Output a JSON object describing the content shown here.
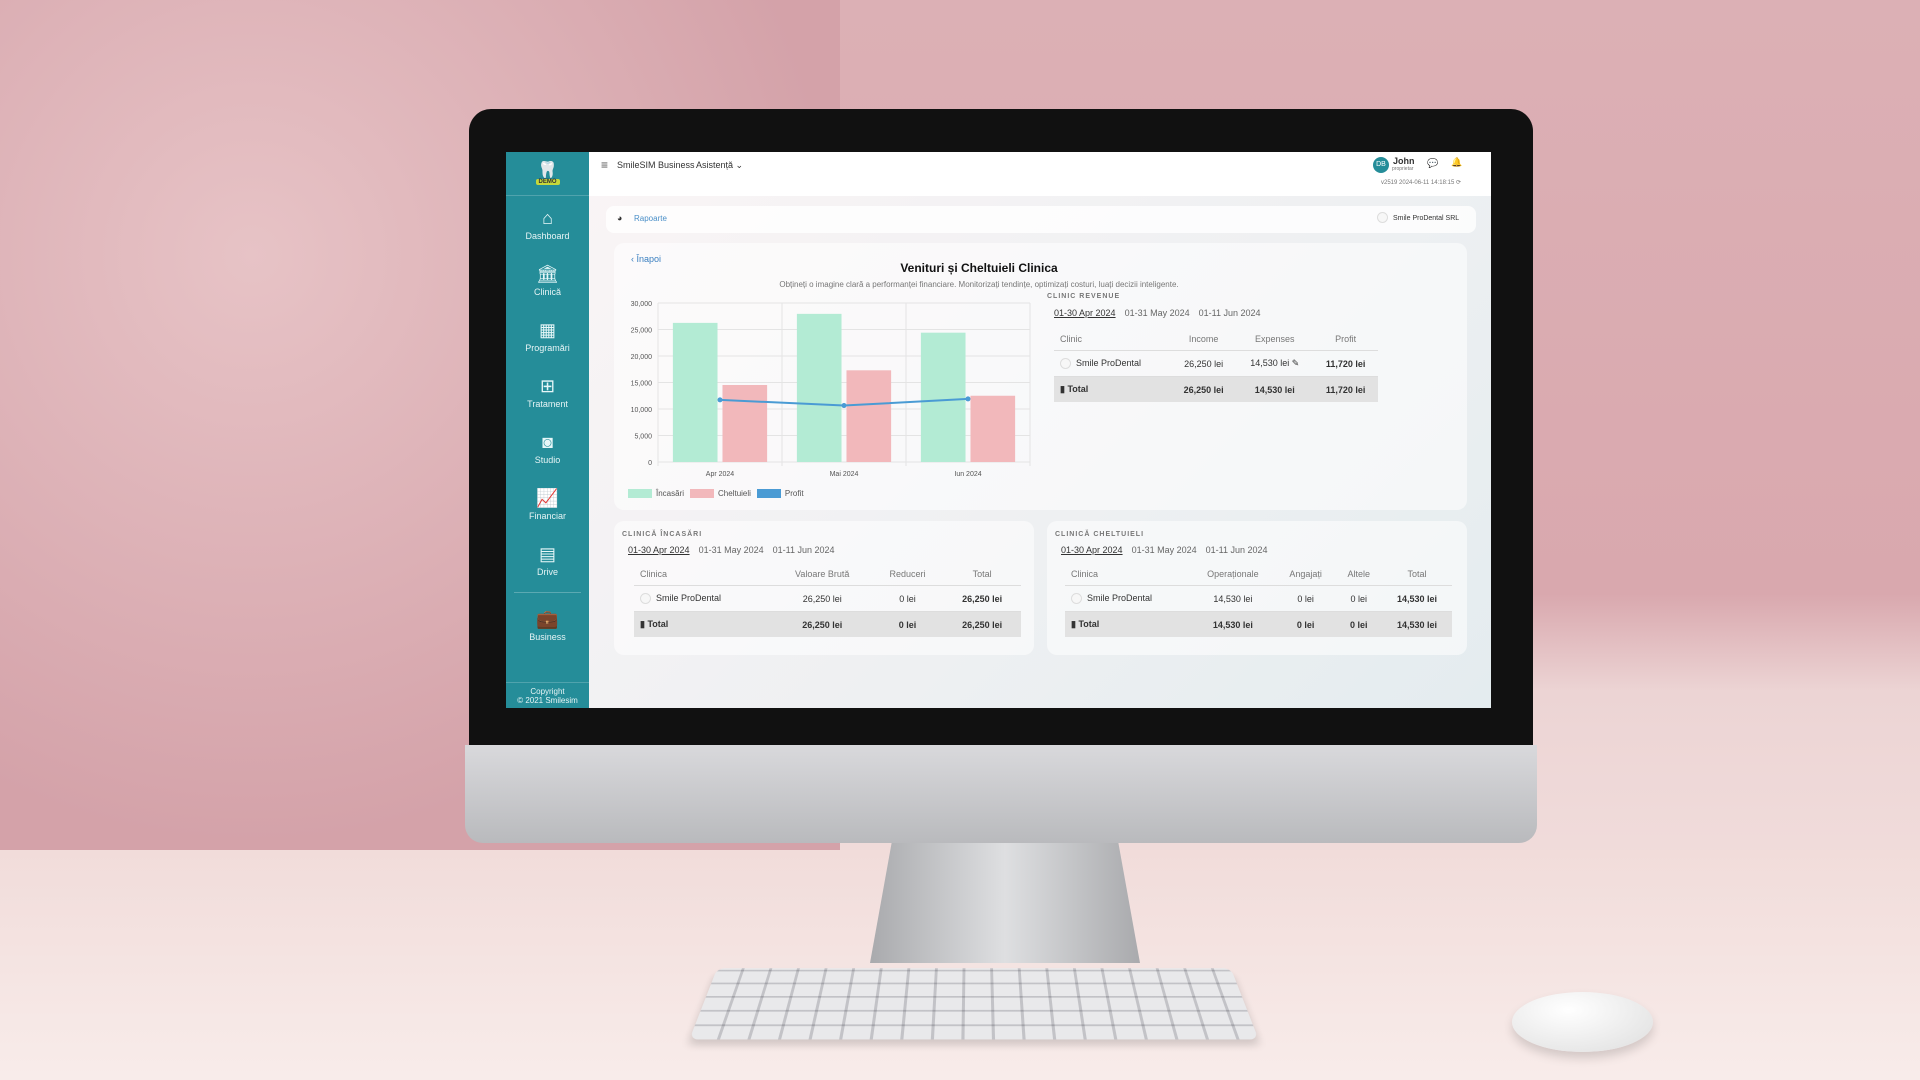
{
  "app": {
    "title": "SmileSIM Business",
    "menu_assist": "Asistență",
    "demo_badge": "DEMO"
  },
  "user": {
    "initials": "DB",
    "name": "John",
    "role": "proprietar",
    "version": "v2519 2024-06-11 14:18:15"
  },
  "sidebar": {
    "items": [
      {
        "label": "Dashboard",
        "icon": "home-icon",
        "glyph": "⌂"
      },
      {
        "label": "Clinică",
        "icon": "bank-icon",
        "glyph": "🏛"
      },
      {
        "label": "Programări",
        "icon": "calendar-icon",
        "glyph": "▦"
      },
      {
        "label": "Tratament",
        "icon": "grid-icon",
        "glyph": "⊞"
      },
      {
        "label": "Studio",
        "icon": "camera-icon",
        "glyph": "◙"
      },
      {
        "label": "Financiar",
        "icon": "chart-line-icon",
        "glyph": "📈"
      },
      {
        "label": "Drive",
        "icon": "drive-icon",
        "glyph": "▤"
      },
      {
        "label": "Business",
        "icon": "briefcase-icon",
        "glyph": "💼"
      }
    ],
    "copyright1": "Copyright",
    "copyright2": "© 2021 Smilesim"
  },
  "breadcrumb": {
    "label": "Rapoarte",
    "company": "Smile ProDental SRL"
  },
  "report": {
    "back": "Înapoi",
    "title": "Venituri și Cheltuieli Clinica",
    "subtitle": "Obțineți o imagine clară a performanței financiare. Monitorizați tendințe, optimizați costuri, luați decizii inteligente."
  },
  "periods": [
    "01-30 Apr 2024",
    "01-31 May 2024",
    "01-11 Jun 2024"
  ],
  "revenue": {
    "section": "CLINIC REVENUE",
    "headers": [
      "Clinic",
      "Income",
      "Expenses",
      "Profit"
    ],
    "row": [
      "Smile ProDental",
      "26,250 lei",
      "14,530 lei",
      "11,720 lei"
    ],
    "total": [
      "Total",
      "26,250 lei",
      "14,530 lei",
      "11,720 lei"
    ]
  },
  "income": {
    "section": "CLINICĂ ÎNCASĂRI",
    "headers": [
      "Clinica",
      "Valoare Brută",
      "Reduceri",
      "Total"
    ],
    "row": [
      "Smile ProDental",
      "26,250 lei",
      "0 lei",
      "26,250 lei"
    ],
    "total": [
      "Total",
      "26,250 lei",
      "0 lei",
      "26,250 lei"
    ]
  },
  "expenses": {
    "section": "CLINICĂ CHELTUIELI",
    "headers": [
      "Clinica",
      "Operaționale",
      "Angajați",
      "Altele",
      "Total"
    ],
    "row": [
      "Smile ProDental",
      "14,530 lei",
      "0 lei",
      "0 lei",
      "14,530 lei"
    ],
    "total": [
      "Total",
      "14,530 lei",
      "0 lei",
      "0 lei",
      "14,530 lei"
    ]
  },
  "chart_data": {
    "type": "bar",
    "categories": [
      "Apr 2024",
      "Mai 2024",
      "Iun 2024"
    ],
    "series": [
      {
        "name": "Încasări",
        "type": "bar",
        "color": "#b3ebd4",
        "values": [
          26250,
          27950,
          24400
        ]
      },
      {
        "name": "Cheltuieli",
        "type": "bar",
        "color": "#f2b8bb",
        "values": [
          14530,
          17300,
          12500
        ]
      },
      {
        "name": "Profit",
        "type": "line",
        "color": "#4a9bd4",
        "values": [
          11720,
          10650,
          11900
        ]
      }
    ],
    "ylim": [
      0,
      30000
    ],
    "yticks": [
      "0",
      "5,000",
      "10,000",
      "15,000",
      "20,000",
      "25,000",
      "30,000"
    ],
    "grid": true,
    "legend": "bottom-left"
  }
}
